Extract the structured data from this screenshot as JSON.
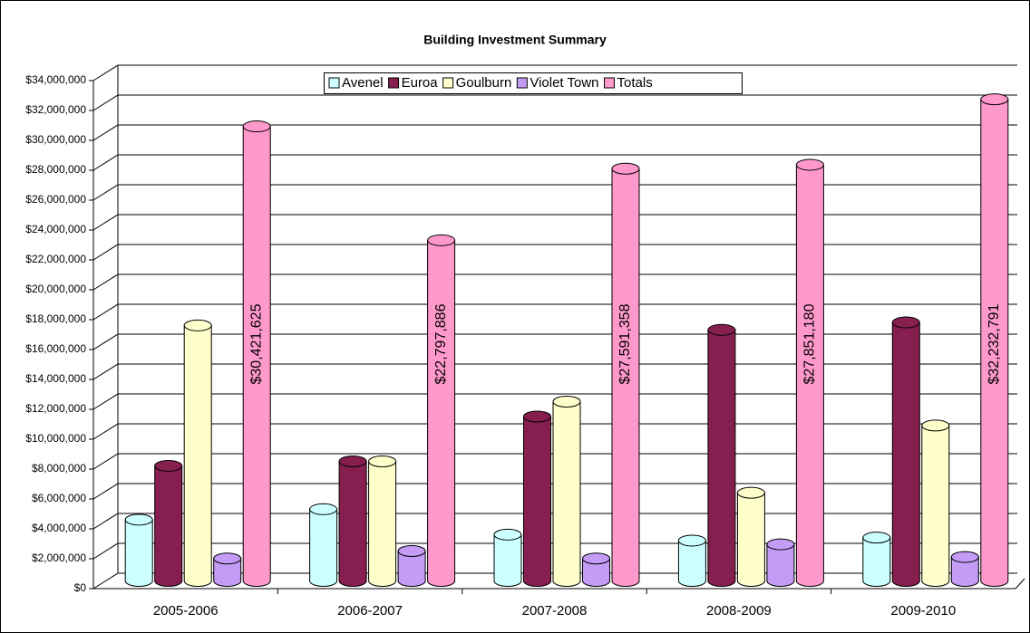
{
  "chart_data": {
    "type": "bar3d",
    "title": "Building Investment Summary",
    "categories": [
      "2005-2006",
      "2006-2007",
      "2007-2008",
      "2008-2009",
      "2009-2010"
    ],
    "series": [
      {
        "name": "Avenel",
        "color": "#ccffff",
        "values": [
          4100000,
          4800000,
          3100000,
          2700000,
          2900000
        ]
      },
      {
        "name": "Euroa",
        "color": "#861f4f",
        "values": [
          7700000,
          8000000,
          11000000,
          16800000,
          17300000
        ]
      },
      {
        "name": "Goulburn",
        "color": "#ffffcc",
        "values": [
          17100000,
          8000000,
          12000000,
          5900000,
          10400000
        ]
      },
      {
        "name": "Violet Town",
        "color": "#c49cf5",
        "values": [
          1500000,
          2000000,
          1500000,
          2450000,
          1600000
        ]
      },
      {
        "name": "Totals",
        "color": "#ff99cc",
        "values": [
          30421625,
          22797886,
          27591358,
          27851180,
          32232791
        ],
        "value_labels": [
          "$30,421,625",
          "$22,797,886",
          "$27,591,358",
          "$27,851,180",
          "$32,232,791"
        ]
      }
    ],
    "ylim": [
      0,
      34000000
    ],
    "yticks": [
      {
        "value": 0,
        "label": "$0"
      },
      {
        "value": 2000000,
        "label": "$2,000,000"
      },
      {
        "value": 4000000,
        "label": "$4,000,000"
      },
      {
        "value": 6000000,
        "label": "$6,000,000"
      },
      {
        "value": 8000000,
        "label": "$8,000,000"
      },
      {
        "value": 10000000,
        "label": "$10,000,000"
      },
      {
        "value": 12000000,
        "label": "$12,000,000"
      },
      {
        "value": 14000000,
        "label": "$14,000,000"
      },
      {
        "value": 16000000,
        "label": "$16,000,000"
      },
      {
        "value": 18000000,
        "label": "$18,000,000"
      },
      {
        "value": 20000000,
        "label": "$20,000,000"
      },
      {
        "value": 22000000,
        "label": "$22,000,000"
      },
      {
        "value": 24000000,
        "label": "$24,000,000"
      },
      {
        "value": 26000000,
        "label": "$26,000,000"
      },
      {
        "value": 28000000,
        "label": "$28,000,000"
      },
      {
        "value": 30000000,
        "label": "$30,000,000"
      },
      {
        "value": 32000000,
        "label": "$32,000,000"
      },
      {
        "value": 34000000,
        "label": "$34,000,000"
      }
    ],
    "grid": true,
    "legend": "top"
  }
}
